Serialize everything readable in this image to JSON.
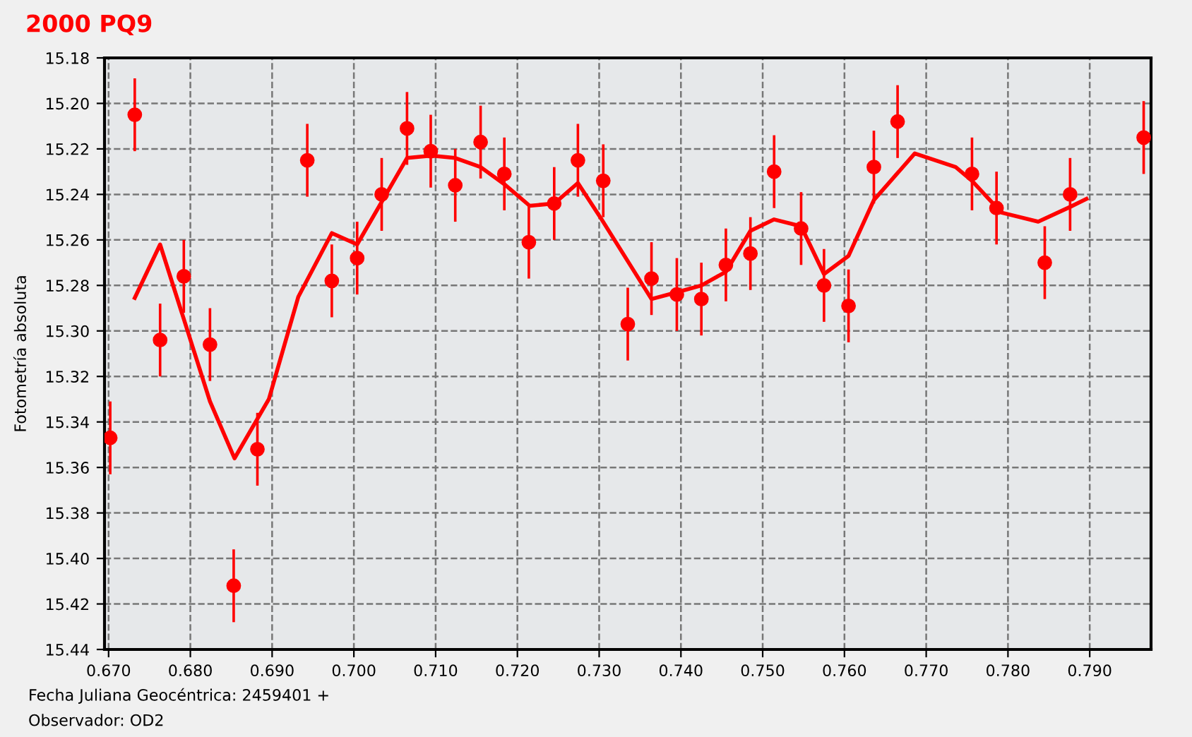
{
  "chart_data": {
    "type": "scatter",
    "title": "2000 PQ9",
    "ylabel": "Fotometría absoluta",
    "annotations": [
      "Fecha Juliana Geocéntrica: 2459401 +",
      "Observador: OD2"
    ],
    "xlim": [
      0.6695,
      0.7975
    ],
    "ylim": [
      15.44,
      15.18
    ],
    "xticks": [
      {
        "value": 0.67,
        "label": "0.670"
      },
      {
        "value": 0.68,
        "label": "0.680"
      },
      {
        "value": 0.69,
        "label": "0.690"
      },
      {
        "value": 0.7,
        "label": "0.700"
      },
      {
        "value": 0.71,
        "label": "0.710"
      },
      {
        "value": 0.72,
        "label": "0.720"
      },
      {
        "value": 0.73,
        "label": "0.730"
      },
      {
        "value": 0.74,
        "label": "0.740"
      },
      {
        "value": 0.75,
        "label": "0.750"
      },
      {
        "value": 0.76,
        "label": "0.760"
      },
      {
        "value": 0.77,
        "label": "0.770"
      },
      {
        "value": 0.78,
        "label": "0.780"
      },
      {
        "value": 0.79,
        "label": "0.790"
      }
    ],
    "yticks": [
      {
        "value": 15.18,
        "label": "15.18"
      },
      {
        "value": 15.2,
        "label": "15.20"
      },
      {
        "value": 15.22,
        "label": "15.22"
      },
      {
        "value": 15.24,
        "label": "15.24"
      },
      {
        "value": 15.26,
        "label": "15.26"
      },
      {
        "value": 15.28,
        "label": "15.28"
      },
      {
        "value": 15.3,
        "label": "15.30"
      },
      {
        "value": 15.32,
        "label": "15.32"
      },
      {
        "value": 15.34,
        "label": "15.34"
      },
      {
        "value": 15.36,
        "label": "15.36"
      },
      {
        "value": 15.38,
        "label": "15.38"
      },
      {
        "value": 15.4,
        "label": "15.40"
      },
      {
        "value": 15.42,
        "label": "15.42"
      },
      {
        "value": 15.44,
        "label": "15.44"
      }
    ],
    "grid": true,
    "legend": false,
    "series": [
      {
        "color": "#ff0000",
        "marker": "circle",
        "x": [
          0.6702,
          0.6732,
          0.6763,
          0.6792,
          0.6824,
          0.6853,
          0.6882,
          0.6943,
          0.6973,
          0.7004,
          0.7034,
          0.7065,
          0.7094,
          0.7124,
          0.7155,
          0.7184,
          0.7214,
          0.7245,
          0.7274,
          0.7305,
          0.7335,
          0.7364,
          0.7395,
          0.7425,
          0.7455,
          0.7485,
          0.7514,
          0.7547,
          0.7575,
          0.7605,
          0.7636,
          0.7665,
          0.7756,
          0.7786,
          0.7845,
          0.7876,
          0.7966
        ],
        "values": [
          15.347,
          15.205,
          15.304,
          15.276,
          15.306,
          15.412,
          15.352,
          15.225,
          15.278,
          15.268,
          15.24,
          15.211,
          15.221,
          15.236,
          15.217,
          15.231,
          15.261,
          15.244,
          15.225,
          15.234,
          15.297,
          15.277,
          15.284,
          15.286,
          15.271,
          15.266,
          15.23,
          15.255,
          15.28,
          15.289,
          15.228,
          15.208,
          15.231,
          15.246,
          15.27,
          15.24,
          15.215
        ],
        "errors": [
          0.016,
          0.016,
          0.016,
          0.016,
          0.016,
          0.016,
          0.016,
          0.016,
          0.016,
          0.016,
          0.016,
          0.016,
          0.016,
          0.016,
          0.016,
          0.016,
          0.016,
          0.016,
          0.016,
          0.016,
          0.016,
          0.016,
          0.016,
          0.016,
          0.016,
          0.016,
          0.016,
          0.016,
          0.016,
          0.016,
          0.016,
          0.016,
          0.016,
          0.016,
          0.016,
          0.016,
          0.016
        ]
      },
      {
        "type": "line",
        "color": "#ff0000",
        "marker": "none",
        "line_style": "solid",
        "x": [
          0.6732,
          0.6763,
          0.6824,
          0.6854,
          0.6896,
          0.6932,
          0.6973,
          0.7004,
          0.7065,
          0.7095,
          0.7124,
          0.7155,
          0.7184,
          0.7215,
          0.7245,
          0.7274,
          0.7303,
          0.7364,
          0.7395,
          0.7425,
          0.7455,
          0.7485,
          0.7514,
          0.7547,
          0.7575,
          0.7605,
          0.7636,
          0.7686,
          0.7736,
          0.7756,
          0.7792,
          0.7837,
          0.7876,
          0.7896
        ],
        "values": [
          15.2855,
          15.262,
          15.331,
          15.356,
          15.33,
          15.285,
          15.257,
          15.262,
          15.224,
          15.223,
          15.224,
          15.228,
          15.2355,
          15.245,
          15.244,
          15.235,
          15.251,
          15.286,
          15.283,
          15.28,
          15.274,
          15.256,
          15.251,
          15.254,
          15.275,
          15.267,
          15.2425,
          15.222,
          15.228,
          15.234,
          15.248,
          15.252,
          15.2455,
          15.242
        ]
      }
    ]
  }
}
